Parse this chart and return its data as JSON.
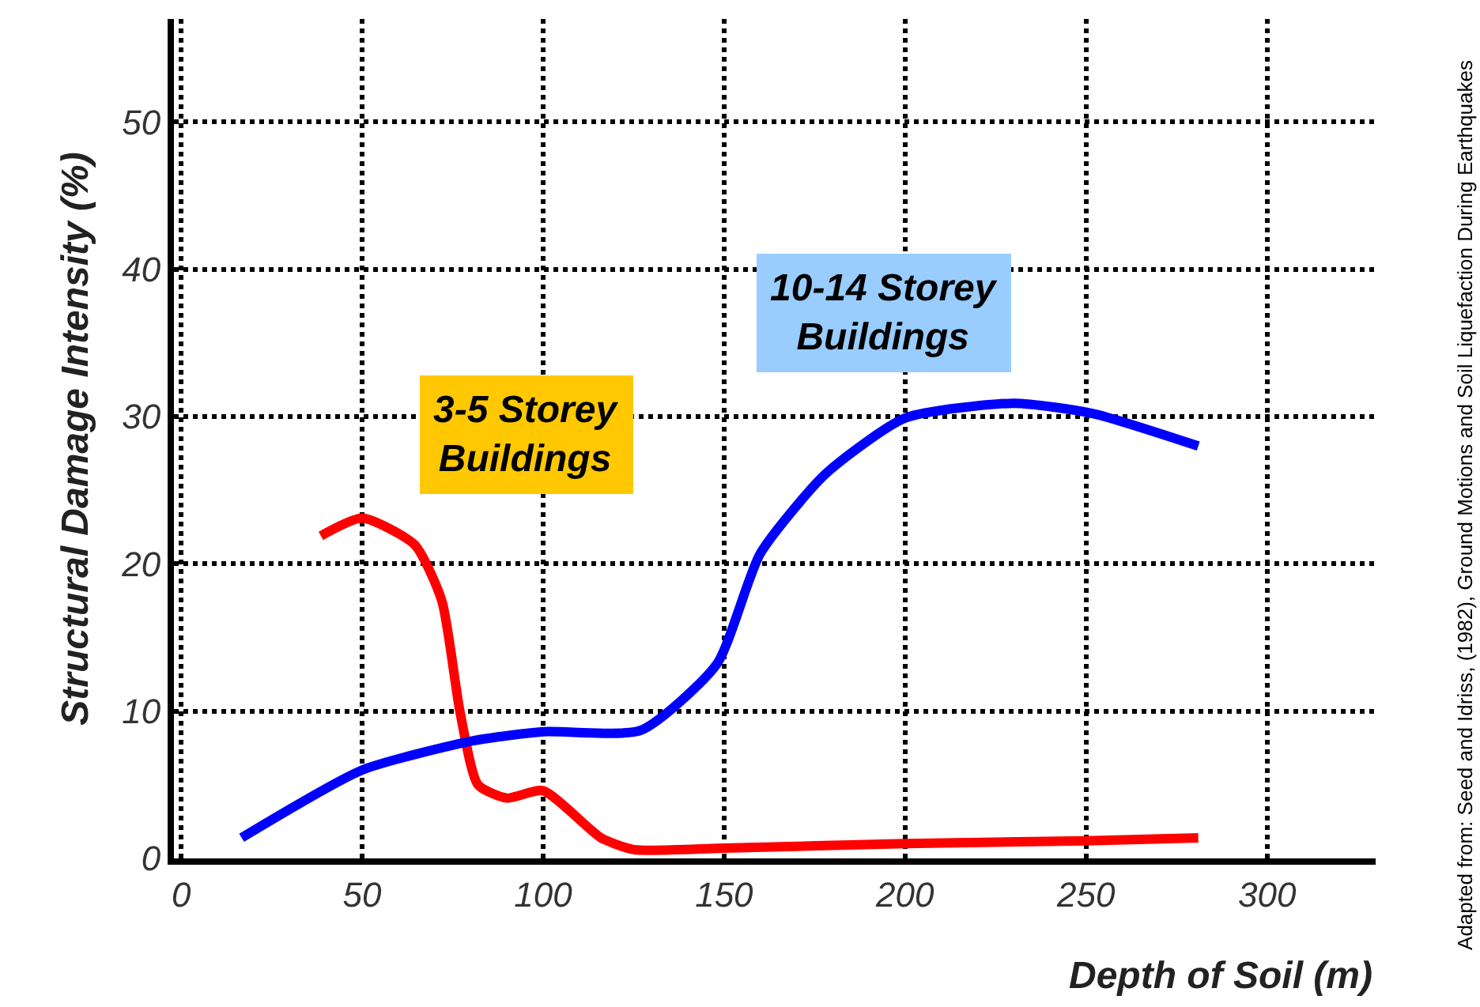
{
  "chart_data": {
    "type": "line",
    "xlabel": "Depth of Soil (m)",
    "ylabel": "Structural Damage Intensity (%)",
    "xlim": [
      -2,
      330
    ],
    "xticks": [
      0,
      50,
      100,
      150,
      200,
      250,
      300
    ],
    "ylim": [
      0,
      57
    ],
    "yticks": [
      0,
      10,
      20,
      30,
      40,
      50
    ],
    "grid": true,
    "legend": false,
    "marker": "none",
    "line_style": "solid",
    "series": [
      {
        "name": "3-5 Storey Buildings",
        "color": "#ff0000",
        "x": [
          38.6,
          50,
          64.5,
          72,
          77,
          82,
          90,
          100,
          116,
          125,
          150,
          200,
          250,
          281
        ],
        "values": [
          21.9,
          23.1,
          21.3,
          17.5,
          10,
          5,
          4.1,
          4.6,
          1.4,
          0.6,
          0.7,
          1,
          1.2,
          1.4
        ]
      },
      {
        "name": "10-14 Storey Buildings",
        "color": "#0000ff",
        "x": [
          16.7,
          50,
          81,
          100,
          127,
          148,
          160,
          178,
          200,
          230,
          252,
          281
        ],
        "values": [
          1.4,
          6,
          8,
          8.6,
          8.7,
          13.2,
          20.7,
          26.1,
          29.9,
          30.9,
          30.2,
          28
        ]
      }
    ],
    "annotations": [
      "Adapted from: Seed and Idriss, (1982), Ground Motions and Soil Liquefaction During Earthquakes"
    ]
  }
}
